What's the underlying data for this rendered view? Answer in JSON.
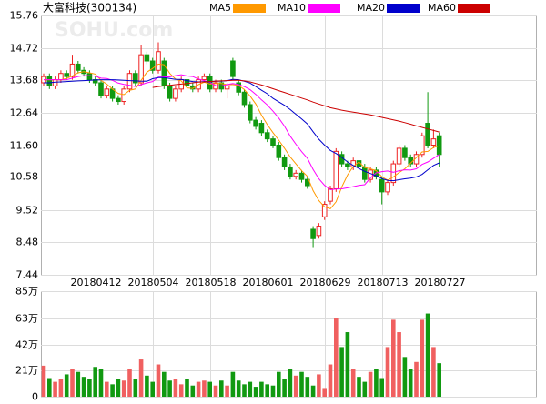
{
  "chart_data": [
    {
      "type": "candlestick",
      "title": "大富科技(300134)",
      "watermark": "SOHU.com",
      "categories": [
        null,
        null,
        null,
        null,
        null,
        null,
        null,
        null,
        null,
        "20180412",
        null,
        null,
        null,
        null,
        null,
        null,
        null,
        null,
        null,
        "20180504",
        null,
        null,
        null,
        null,
        null,
        null,
        null,
        null,
        null,
        "20180518",
        null,
        null,
        null,
        null,
        null,
        null,
        null,
        null,
        null,
        "20180601",
        null,
        null,
        null,
        null,
        null,
        null,
        null,
        null,
        null,
        "20180629",
        null,
        null,
        null,
        null,
        null,
        null,
        null,
        null,
        null,
        "20180713",
        null,
        null,
        null,
        null,
        null,
        null,
        null,
        null,
        null,
        "20180727"
      ],
      "open": [
        13.6,
        13.8,
        13.5,
        13.7,
        13.9,
        13.8,
        14.2,
        14.0,
        13.9,
        13.7,
        13.6,
        13.2,
        13.4,
        13.1,
        13.0,
        13.4,
        13.9,
        13.6,
        14.5,
        14.3,
        14.0,
        14.3,
        13.5,
        13.1,
        13.4,
        13.7,
        13.5,
        13.4,
        13.7,
        13.8,
        13.4,
        13.6,
        13.4,
        14.3,
        13.6,
        13.3,
        12.9,
        12.4,
        12.3,
        12.0,
        11.8,
        11.6,
        11.2,
        10.9,
        10.6,
        10.7,
        10.5,
        8.9,
        8.7,
        9.3,
        9.8,
        10.2,
        11.3,
        11.0,
        10.9,
        11.1,
        10.9,
        10.5,
        10.8,
        10.5,
        10.1,
        10.4,
        11.0,
        11.5,
        11.2,
        11.0,
        11.3,
        12.3,
        11.6,
        11.9
      ],
      "high": [
        13.9,
        13.9,
        13.8,
        14.0,
        14.0,
        14.5,
        14.3,
        14.1,
        14.0,
        13.8,
        13.7,
        13.5,
        13.5,
        13.2,
        13.5,
        14.0,
        14.0,
        14.8,
        14.6,
        14.4,
        14.9,
        14.4,
        13.6,
        13.5,
        13.8,
        13.8,
        13.6,
        13.8,
        13.9,
        13.9,
        13.7,
        13.7,
        13.6,
        14.4,
        13.7,
        13.4,
        13.0,
        12.5,
        12.4,
        12.1,
        11.9,
        11.7,
        11.3,
        11.0,
        10.8,
        10.8,
        10.6,
        9.0,
        9.1,
        9.8,
        10.3,
        11.5,
        11.4,
        11.1,
        11.2,
        11.2,
        11.0,
        10.9,
        10.9,
        10.6,
        10.5,
        11.1,
        11.6,
        11.6,
        11.3,
        11.4,
        12.0,
        13.3,
        12.1,
        12.0
      ],
      "low": [
        13.5,
        13.4,
        13.4,
        13.6,
        13.7,
        13.7,
        13.9,
        13.8,
        13.6,
        13.5,
        13.1,
        13.1,
        13.0,
        12.9,
        12.9,
        13.3,
        13.5,
        13.5,
        14.2,
        13.9,
        13.9,
        13.4,
        13.0,
        13.0,
        13.3,
        13.4,
        13.3,
        13.3,
        13.6,
        13.3,
        13.3,
        13.3,
        13.1,
        13.7,
        13.2,
        12.8,
        12.3,
        12.1,
        11.9,
        11.7,
        11.5,
        11.1,
        10.8,
        10.5,
        10.5,
        10.4,
        10.2,
        8.3,
        8.6,
        9.2,
        9.7,
        10.1,
        10.9,
        10.8,
        10.8,
        10.8,
        10.4,
        10.4,
        10.5,
        9.7,
        10.0,
        10.3,
        10.9,
        11.1,
        10.9,
        10.9,
        11.2,
        11.5,
        11.5,
        10.9
      ],
      "close": [
        13.8,
        13.5,
        13.7,
        13.9,
        13.8,
        14.2,
        14.0,
        13.9,
        13.7,
        13.6,
        13.2,
        13.4,
        13.1,
        13.0,
        13.4,
        13.9,
        13.6,
        14.5,
        14.3,
        14.0,
        14.6,
        13.5,
        13.1,
        13.4,
        13.7,
        13.5,
        13.4,
        13.7,
        13.8,
        13.4,
        13.6,
        13.4,
        13.5,
        13.8,
        13.3,
        12.9,
        12.4,
        12.2,
        12.0,
        11.8,
        11.6,
        11.2,
        10.9,
        10.6,
        10.7,
        10.5,
        10.3,
        8.6,
        9.0,
        9.7,
        10.2,
        11.4,
        11.0,
        10.9,
        11.1,
        10.9,
        10.5,
        10.8,
        10.6,
        10.1,
        10.4,
        11.0,
        11.5,
        11.2,
        11.0,
        11.3,
        11.9,
        11.6,
        11.8,
        11.3
      ],
      "up_color": "#ee2222",
      "down_color": "#119911",
      "series": [
        {
          "name": "MA5",
          "color": "#ff9900",
          "values": [
            13.7,
            13.7,
            13.7,
            13.7,
            13.74,
            13.82,
            13.92,
            13.96,
            13.92,
            13.88,
            13.68,
            13.56,
            13.4,
            13.26,
            13.22,
            13.36,
            13.4,
            13.68,
            13.94,
            14.06,
            14.2,
            14.18,
            13.9,
            13.72,
            13.66,
            13.44,
            13.42,
            13.54,
            13.62,
            13.56,
            13.58,
            13.58,
            13.54,
            13.54,
            13.52,
            13.38,
            13.18,
            12.92,
            12.56,
            12.26,
            12.0,
            11.76,
            11.5,
            11.22,
            11.0,
            10.78,
            10.6,
            10.14,
            9.82,
            9.62,
            9.56,
            9.78,
            10.26,
            10.64,
            10.92,
            11.06,
            10.88,
            10.84,
            10.78,
            10.58,
            10.48,
            10.58,
            10.72,
            10.84,
            11.02,
            11.2,
            11.38,
            11.4,
            11.52,
            11.58
          ]
        },
        {
          "name": "MA10",
          "color": "#ff00ff",
          "values": [
            13.7,
            13.7,
            13.7,
            13.7,
            13.7,
            13.75,
            13.8,
            13.83,
            13.83,
            13.81,
            13.75,
            13.74,
            13.68,
            13.59,
            13.55,
            13.52,
            13.48,
            13.54,
            13.6,
            13.64,
            13.78,
            13.79,
            13.79,
            13.83,
            13.86,
            13.82,
            13.8,
            13.72,
            13.67,
            13.61,
            13.51,
            13.5,
            13.54,
            13.58,
            13.54,
            13.48,
            13.38,
            13.23,
            13.05,
            12.89,
            12.69,
            12.47,
            12.21,
            11.89,
            11.63,
            11.39,
            11.18,
            10.82,
            10.52,
            10.31,
            10.17,
            10.19,
            10.2,
            10.23,
            10.27,
            10.31,
            10.33,
            10.55,
            10.71,
            10.75,
            10.77,
            10.73,
            10.78,
            10.81,
            10.8,
            10.84,
            10.98,
            11.06,
            11.18,
            11.3
          ]
        },
        {
          "name": "MA20",
          "color": "#0000cc",
          "values": [
            13.6,
            13.6,
            13.62,
            13.63,
            13.64,
            13.65,
            13.66,
            13.67,
            13.68,
            13.69,
            13.7,
            13.7,
            13.7,
            13.69,
            13.68,
            13.67,
            13.66,
            13.65,
            13.65,
            13.73,
            13.77,
            13.77,
            13.74,
            13.71,
            13.71,
            13.67,
            13.64,
            13.63,
            13.64,
            13.63,
            13.65,
            13.65,
            13.67,
            13.71,
            13.7,
            13.65,
            13.59,
            13.48,
            13.36,
            13.25,
            13.1,
            12.99,
            12.88,
            12.74,
            12.59,
            12.44,
            12.28,
            12.03,
            11.79,
            11.6,
            11.43,
            11.33,
            11.21,
            11.06,
            10.95,
            10.85,
            10.76,
            10.69,
            10.62,
            10.53,
            10.47,
            10.46,
            10.49,
            10.52,
            10.54,
            10.58,
            10.66,
            10.81,
            10.95,
            11.03
          ]
        },
        {
          "name": "MA60",
          "color": "#cc0000",
          "values": [
            null,
            null,
            null,
            null,
            null,
            null,
            null,
            null,
            null,
            null,
            null,
            null,
            null,
            null,
            null,
            null,
            null,
            null,
            null,
            13.45,
            13.48,
            13.5,
            13.52,
            13.54,
            13.56,
            13.58,
            13.6,
            13.62,
            13.63,
            13.64,
            13.65,
            13.66,
            13.67,
            13.68,
            13.68,
            13.66,
            13.63,
            13.58,
            13.53,
            13.47,
            13.41,
            13.35,
            13.29,
            13.23,
            13.17,
            13.11,
            13.05,
            12.98,
            12.92,
            12.86,
            12.8,
            12.76,
            12.72,
            12.69,
            12.66,
            12.63,
            12.6,
            12.57,
            12.53,
            12.49,
            12.45,
            12.41,
            12.37,
            12.32,
            12.27,
            12.22,
            12.17,
            12.12,
            12.07,
            12.02
          ]
        }
      ],
      "ylim": [
        7.44,
        15.76
      ],
      "yticks": [
        7.44,
        8.48,
        9.52,
        10.58,
        {
          "value": 11.6,
          "label": "11.60"
        },
        12.64,
        13.68,
        14.72,
        15.76
      ],
      "grid": true
    },
    {
      "type": "bar",
      "values": [
        25,
        15,
        12,
        14,
        18,
        22,
        20,
        16,
        14,
        24,
        22,
        12,
        10,
        14,
        13,
        22,
        14,
        30,
        17,
        12,
        26,
        20,
        13,
        14,
        10,
        14,
        9,
        12,
        13,
        12,
        9,
        13,
        9,
        20,
        13,
        10,
        12,
        8,
        12,
        10,
        9,
        20,
        14,
        22,
        17,
        20,
        16,
        9,
        18,
        7,
        26,
        63,
        40,
        52,
        22,
        16,
        12,
        20,
        22,
        15,
        40,
        62,
        52,
        32,
        22,
        28,
        62,
        67,
        40,
        27
      ],
      "up_color": "#f06060",
      "down_color": "#119911",
      "ylim": [
        0,
        85
      ],
      "yticks": [
        0,
        {
          "value": 21,
          "label": "21万"
        },
        {
          "value": 42,
          "label": "42万"
        },
        {
          "value": 63,
          "label": "63万"
        },
        {
          "value": 85,
          "label": "85万"
        }
      ],
      "grid": true
    }
  ]
}
